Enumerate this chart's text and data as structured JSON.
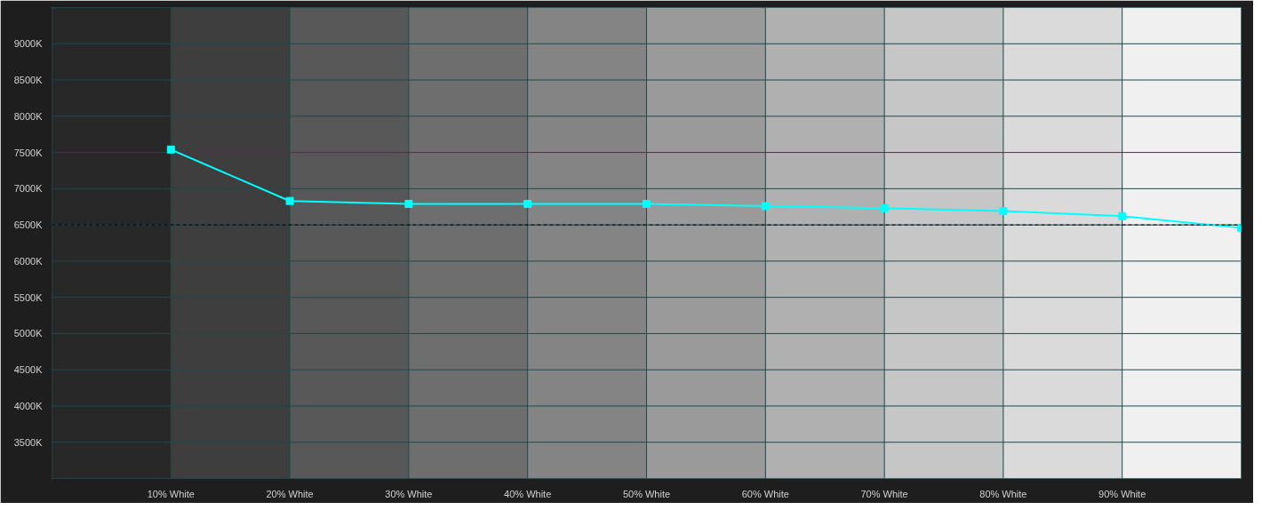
{
  "chart_data": {
    "type": "line",
    "x": [
      10,
      20,
      30,
      40,
      50,
      60,
      70,
      80,
      90,
      100
    ],
    "series": [
      {
        "color": "#00ffff",
        "values": [
          7540,
          6830,
          6790,
          6790,
          6790,
          6760,
          6730,
          6690,
          6620,
          6460
        ]
      }
    ],
    "xlim": [
      0,
      100
    ],
    "ylim": [
      3000,
      9500
    ],
    "xticks": [
      {
        "value": 10,
        "label": "10% White"
      },
      {
        "value": 20,
        "label": "20% White"
      },
      {
        "value": 30,
        "label": "30% White"
      },
      {
        "value": 40,
        "label": "40% White"
      },
      {
        "value": 50,
        "label": "50% White"
      },
      {
        "value": 60,
        "label": "60% White"
      },
      {
        "value": 70,
        "label": "70% White"
      },
      {
        "value": 80,
        "label": "80% White"
      },
      {
        "value": 90,
        "label": "90% White"
      }
    ],
    "yticks": [
      {
        "value": 3500,
        "label": "3500K"
      },
      {
        "value": 4000,
        "label": "4000K"
      },
      {
        "value": 4500,
        "label": "4500K"
      },
      {
        "value": 5000,
        "label": "5000K"
      },
      {
        "value": 5500,
        "label": "5500K"
      },
      {
        "value": 6000,
        "label": "6000K"
      },
      {
        "value": 6500,
        "label": "6500K"
      },
      {
        "value": 7000,
        "label": "7000K"
      },
      {
        "value": 7500,
        "label": "7500K"
      },
      {
        "value": 8000,
        "label": "8000K"
      },
      {
        "value": 8500,
        "label": "8500K"
      },
      {
        "value": 9000,
        "label": "9000K"
      }
    ],
    "grid": true,
    "marker": "square",
    "line_style": "solid",
    "ref_lines": [
      {
        "axis": "y",
        "value": 6500,
        "color": "#000000",
        "line_style": "dashed"
      }
    ],
    "bands": [
      {
        "axis": "x",
        "from": 0,
        "to": 10,
        "color": "#282828"
      },
      {
        "axis": "x",
        "from": 10,
        "to": 20,
        "color": "#3e3e3e"
      },
      {
        "axis": "x",
        "from": 20,
        "to": 30,
        "color": "#585858"
      },
      {
        "axis": "x",
        "from": 30,
        "to": 40,
        "color": "#6e6e6e"
      },
      {
        "axis": "x",
        "from": 40,
        "to": 50,
        "color": "#848484"
      },
      {
        "axis": "x",
        "from": 50,
        "to": 60,
        "color": "#9a9a9a"
      },
      {
        "axis": "x",
        "from": 60,
        "to": 70,
        "color": "#b0b0b0"
      },
      {
        "axis": "x",
        "from": 70,
        "to": 80,
        "color": "#c6c6c6"
      },
      {
        "axis": "x",
        "from": 80,
        "to": 90,
        "color": "#dadada"
      },
      {
        "axis": "x",
        "from": 90,
        "to": 100,
        "color": "#f0f0f0"
      }
    ]
  }
}
